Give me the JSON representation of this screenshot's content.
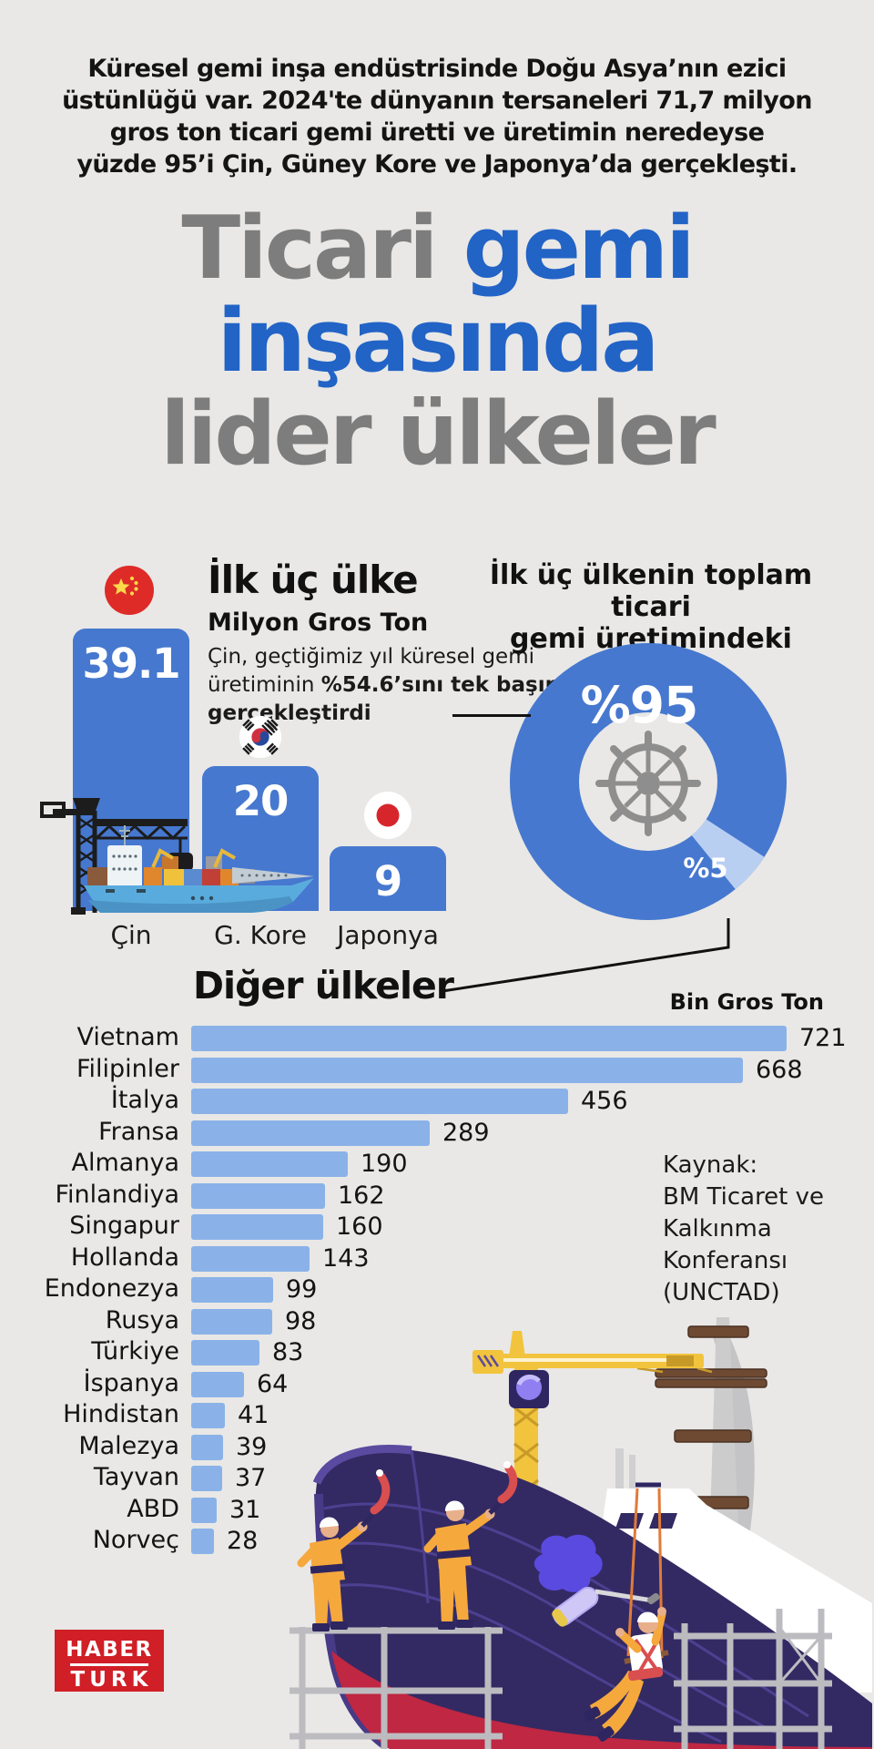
{
  "page": {
    "background": "#e9e8e6",
    "accent_blue": "#2263c6",
    "bar_blue": "#4678cf",
    "light_bar_blue": "#8ab2e8",
    "title_gray": "#7d7d7d",
    "logo_red": "#d01f26"
  },
  "intro": {
    "lines": [
      "Küresel gemi inşa endüstrisinde Doğu Asya’nın ezici",
      "üstünlüğü var. 2024'te dünyanın tersaneleri 71,7 milyon",
      "gros ton ticari gemi üretti ve üretimin neredeyse",
      "yüzde 95’i Çin, Güney Kore ve Japonya’da gerçekleşti."
    ]
  },
  "title": {
    "lines": [
      [
        {
          "text": "Ticari ",
          "color": "gray"
        },
        {
          "text": "gemi",
          "color": "blue"
        }
      ],
      [
        {
          "text": "inşasında",
          "color": "blue"
        }
      ],
      [
        {
          "text": "lider ülkeler",
          "color": "gray"
        }
      ]
    ]
  },
  "top3": {
    "heading": "İlk üç ülke",
    "unit": "Milyon Gros Ton",
    "note_lines": [
      [
        {
          "t": "Çin, geçtiğimiz yıl küresel gemi",
          "b": false
        }
      ],
      [
        {
          "t": "üretiminin ",
          "b": false
        },
        {
          "t": "%54.6’sını tek başına",
          "b": true
        }
      ],
      [
        {
          "t": "gerçekleştirdi",
          "b": true
        }
      ]
    ]
  },
  "share": {
    "heading_lines": [
      "İlk üç ülkenin toplam ticari",
      "gemi üretimindeki payı"
    ],
    "big_label": "%95",
    "small_label": "%5"
  },
  "others": {
    "heading": "Diğer ülkeler",
    "unit": "Bin Gros Ton"
  },
  "source": {
    "lines": [
      "Kaynak:",
      "BM Ticaret ve",
      "Kalkınma",
      "Konferansı",
      "(UNCTAD)"
    ]
  },
  "logo": {
    "top": "HABER",
    "bottom": "TURK"
  },
  "icons": [
    "china-flag-icon",
    "south-korea-flag-icon",
    "japan-flag-icon",
    "ship-wheel-icon",
    "cargo-ship-illustration",
    "tower-crane-illustration",
    "shipyard-illustration"
  ],
  "chart_data": [
    {
      "type": "bar",
      "title": "İlk üç ülke",
      "ylabel": "Milyon Gros Ton",
      "categories": [
        "Çin",
        "G. Kore",
        "Japonya"
      ],
      "values": [
        39.1,
        20,
        9
      ],
      "bar_color": "#4678cf",
      "value_labels_inside": true
    },
    {
      "type": "pie",
      "title": "İlk üç ülkenin toplam ticari gemi üretimindeki payı",
      "labels": [
        "%95",
        "%5"
      ],
      "values": [
        95,
        5
      ],
      "colors": [
        "#4678cf",
        "#b9cff2"
      ],
      "donut": true,
      "center_icon": "ship-wheel-icon"
    },
    {
      "type": "bar",
      "title": "Diğer ülkeler",
      "xlabel": "Bin Gros Ton",
      "orientation": "horizontal",
      "categories": [
        "Vietnam",
        "Filipinler",
        "İtalya",
        "Fransa",
        "Almanya",
        "Finlandiya",
        "Singapur",
        "Hollanda",
        "Endonezya",
        "Rusya",
        "Türkiye",
        "İspanya",
        "Hindistan",
        "Malezya",
        "Tayvan",
        "ABD",
        "Norveç"
      ],
      "values": [
        721,
        668,
        456,
        289,
        190,
        162,
        160,
        143,
        99,
        98,
        83,
        64,
        41,
        39,
        37,
        31,
        28
      ],
      "bar_color": "#8ab2e8"
    }
  ]
}
